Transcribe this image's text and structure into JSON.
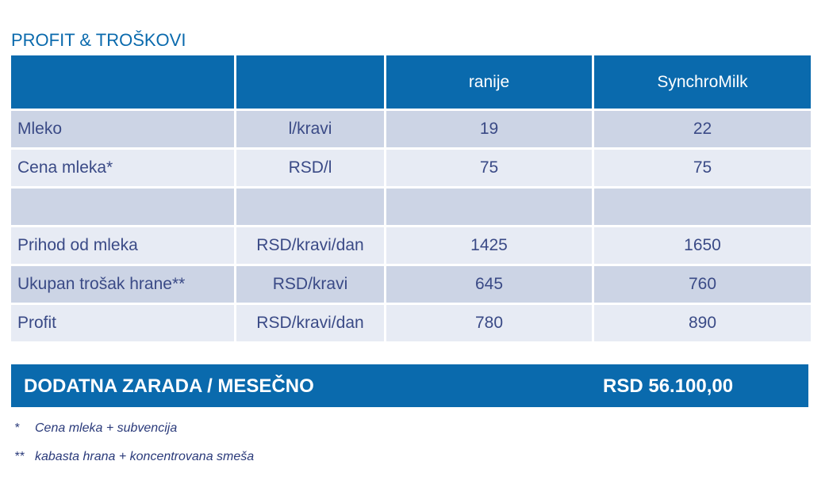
{
  "title": "PROFIT & TROŠKOVI",
  "table": {
    "headers": [
      "",
      "",
      "ranije",
      "SynchroMilk"
    ],
    "rows": [
      [
        "Mleko",
        "l/kravi",
        "19",
        "22"
      ],
      [
        "Cena mleka*",
        "RSD/l",
        "75",
        "75"
      ],
      [
        "",
        "",
        "",
        ""
      ],
      [
        "Prihod od mleka",
        "RSD/kravi/dan",
        "1425",
        "1650"
      ],
      [
        "Ukupan trošak hrane**",
        "RSD/kravi",
        "645",
        "760"
      ],
      [
        "Profit",
        "RSD/kravi/dan",
        "780",
        "890"
      ]
    ]
  },
  "total": {
    "label": "DODATNA ZARADA / MESEČNO",
    "value": "RSD 56.100,00"
  },
  "footnotes": [
    {
      "mark": "*",
      "text": "Cena mleka + subvencija"
    },
    {
      "mark": "**",
      "text": "kabasta hrana + koncentrovana smeša"
    }
  ],
  "colors": {
    "header": "#0a6aad",
    "row_dark": "#ccd4e5",
    "row_light": "#e7ebf4",
    "text": "#3a4a86"
  }
}
